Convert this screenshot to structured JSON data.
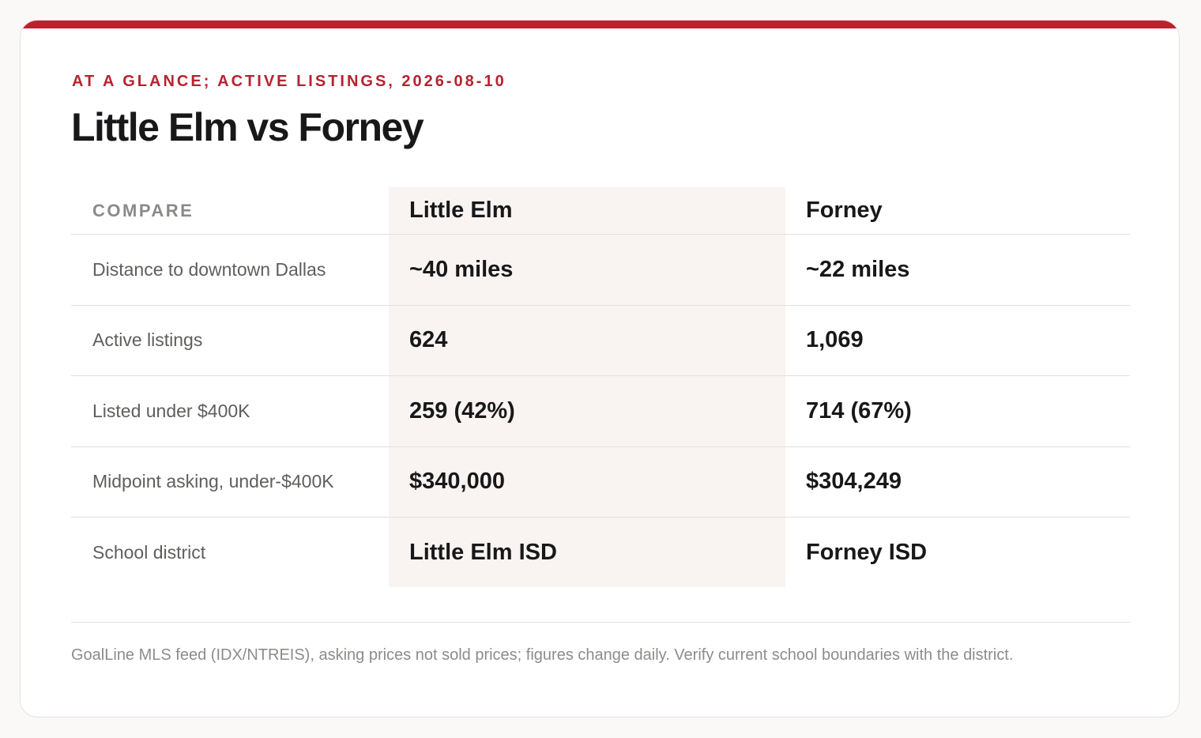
{
  "eyebrow": "AT A GLANCE; ACTIVE LISTINGS, 2026-08-10",
  "title": "Little Elm vs Forney",
  "colors": {
    "accent": "#c0202e",
    "highlight_column": "#f9f4f1"
  },
  "table": {
    "headers": [
      "COMPARE",
      "Little Elm",
      "Forney"
    ],
    "rows": [
      {
        "label": "Distance to downtown Dallas",
        "a": "~40 miles",
        "b": "~22 miles"
      },
      {
        "label": "Active listings",
        "a": "624",
        "b": "1,069"
      },
      {
        "label": "Listed under $400K",
        "a": "259 (42%)",
        "b": "714 (67%)"
      },
      {
        "label": "Midpoint asking, under-$400K",
        "a": "$340,000",
        "b": "$304,249"
      },
      {
        "label": "School district",
        "a": "Little Elm ISD",
        "b": "Forney ISD"
      }
    ]
  },
  "source": "GoalLine MLS feed (IDX/NTREIS), asking prices not sold prices; figures change daily. Verify current school boundaries with the district."
}
